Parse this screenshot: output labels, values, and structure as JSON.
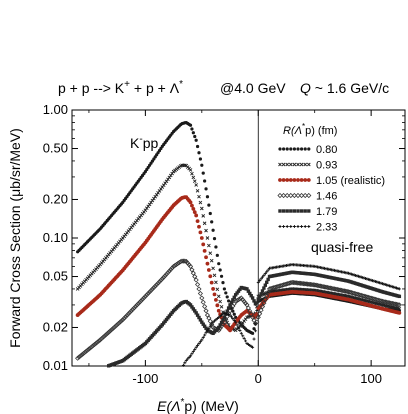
{
  "chart_data": {
    "type": "scatter",
    "title_parts": {
      "reaction": "p + p --> K",
      "reaction_sup1": "+",
      "reaction_mid": " + p + Λ",
      "reaction_sup2": "*",
      "energy": "@4.0 GeV",
      "q_symbol": "Q",
      "q_value": " ~ 1.6 GeV/c"
    },
    "xlabel": {
      "main": "E(Λ",
      "sup": "*",
      "rest": "p)  (MeV)"
    },
    "ylabel": "Forward Cross Section  (μb/sr/MeV)",
    "y_log_scale": true,
    "xlim": [
      -165,
      130
    ],
    "ylim": [
      0.01,
      1.0
    ],
    "x_ticks": [
      -100,
      0,
      100
    ],
    "x_tick_labels": [
      "-100",
      "0",
      "100"
    ],
    "y_ticks": [
      1.0,
      0.5,
      0.2,
      0.1,
      0.05,
      0.02,
      0.01
    ],
    "y_tick_labels": [
      "1.00",
      "0.50",
      "0.20",
      "0.10",
      "0.05",
      "0.02",
      "0.01"
    ],
    "legend": {
      "title": "R(Λ",
      "title_sup": "*",
      "title_sub": "p) (fm)",
      "placement": "top-right"
    },
    "annotations": {
      "bound_label": "K",
      "bound_sup": "-",
      "bound_rest": "pp",
      "quasi_free": "quasi-free"
    },
    "series": [
      {
        "name": "0.80",
        "marker": "dot",
        "color": "#1a1a1a",
        "x": [
          -160,
          -140,
          -120,
          -100,
          -85,
          -75,
          -68,
          -64,
          -60,
          -55,
          -50,
          -45,
          -40,
          -35,
          -30,
          -25,
          -20,
          -15,
          -10,
          -5,
          -2,
          0,
          10,
          30,
          50,
          80,
          110,
          125
        ],
        "y": [
          0.078,
          0.118,
          0.19,
          0.33,
          0.52,
          0.68,
          0.78,
          0.8,
          0.76,
          0.58,
          0.37,
          0.21,
          0.115,
          0.063,
          0.04,
          0.03,
          0.024,
          0.021,
          0.019,
          0.018,
          0.022,
          0.032,
          0.035,
          0.037,
          0.036,
          0.032,
          0.028,
          0.027
        ]
      },
      {
        "name": "0.93",
        "marker": "cross",
        "color": "#222222",
        "x": [
          -160,
          -140,
          -120,
          -100,
          -85,
          -75,
          -68,
          -64,
          -60,
          -55,
          -50,
          -45,
          -40,
          -35,
          -30,
          -25,
          -20,
          -15,
          -10,
          -5,
          -2,
          0,
          10,
          30,
          50,
          80,
          110,
          125
        ],
        "y": [
          0.04,
          0.062,
          0.1,
          0.165,
          0.25,
          0.33,
          0.37,
          0.37,
          0.34,
          0.26,
          0.17,
          0.1,
          0.058,
          0.035,
          0.024,
          0.02,
          0.019,
          0.021,
          0.024,
          0.025,
          0.026,
          0.035,
          0.038,
          0.04,
          0.039,
          0.035,
          0.03,
          0.028
        ]
      },
      {
        "name": "1.05 (realistic)",
        "marker": "circle",
        "color": "#a82a1a",
        "x": [
          -160,
          -140,
          -120,
          -100,
          -85,
          -75,
          -68,
          -64,
          -60,
          -55,
          -50,
          -45,
          -40,
          -35,
          -30,
          -25,
          -20,
          -15,
          -10,
          -5,
          -2,
          0,
          10,
          30,
          50,
          80,
          110,
          125
        ],
        "y": [
          0.025,
          0.036,
          0.056,
          0.092,
          0.14,
          0.18,
          0.205,
          0.21,
          0.19,
          0.15,
          0.1,
          0.063,
          0.04,
          0.027,
          0.021,
          0.019,
          0.022,
          0.025,
          0.027,
          0.025,
          0.024,
          0.028,
          0.036,
          0.038,
          0.037,
          0.033,
          0.028,
          0.026
        ]
      },
      {
        "name": "1.46",
        "marker": "diamond",
        "color": "#333333",
        "x": [
          -160,
          -140,
          -120,
          -100,
          -85,
          -75,
          -68,
          -64,
          -60,
          -55,
          -50,
          -45,
          -40,
          -35,
          -30,
          -25,
          -20,
          -15,
          -10,
          -5,
          -2,
          0,
          10,
          30,
          50,
          80,
          110,
          125
        ],
        "y": [
          0.0115,
          0.016,
          0.023,
          0.035,
          0.048,
          0.06,
          0.066,
          0.066,
          0.06,
          0.047,
          0.034,
          0.025,
          0.02,
          0.019,
          0.022,
          0.027,
          0.032,
          0.034,
          0.03,
          0.024,
          0.021,
          0.024,
          0.04,
          0.045,
          0.043,
          0.038,
          0.032,
          0.03
        ]
      },
      {
        "name": "1.79",
        "marker": "square",
        "color": "#2a2a2a",
        "x": [
          -160,
          -140,
          -120,
          -100,
          -85,
          -75,
          -68,
          -64,
          -60,
          -55,
          -50,
          -45,
          -40,
          -35,
          -30,
          -25,
          -20,
          -15,
          -10,
          -5,
          -2,
          0,
          10,
          30,
          50,
          80,
          110,
          125
        ],
        "y": [
          0.0085,
          0.0095,
          0.011,
          0.015,
          0.021,
          0.027,
          0.031,
          0.032,
          0.03,
          0.026,
          0.022,
          0.019,
          0.018,
          0.02,
          0.024,
          0.03,
          0.036,
          0.041,
          0.04,
          0.034,
          0.03,
          0.033,
          0.05,
          0.054,
          0.052,
          0.046,
          0.038,
          0.035
        ]
      },
      {
        "name": "2.33",
        "marker": "plus",
        "color": "#111111",
        "x": [
          -160,
          -140,
          -120,
          -100,
          -85,
          -75,
          -68,
          -64,
          -60,
          -55,
          -50,
          -45,
          -40,
          -35,
          -30,
          -25,
          -20,
          -15,
          -10,
          -5,
          -2,
          0,
          10,
          30,
          50,
          80,
          110,
          125
        ],
        "y": [
          0.0085,
          0.0085,
          0.0085,
          0.0085,
          0.0085,
          0.0088,
          0.0095,
          0.011,
          0.012,
          0.014,
          0.016,
          0.019,
          0.022,
          0.024,
          0.026,
          0.025,
          0.022,
          0.018,
          0.015,
          0.014,
          0.02,
          0.045,
          0.058,
          0.062,
          0.06,
          0.053,
          0.044,
          0.04
        ]
      }
    ]
  }
}
